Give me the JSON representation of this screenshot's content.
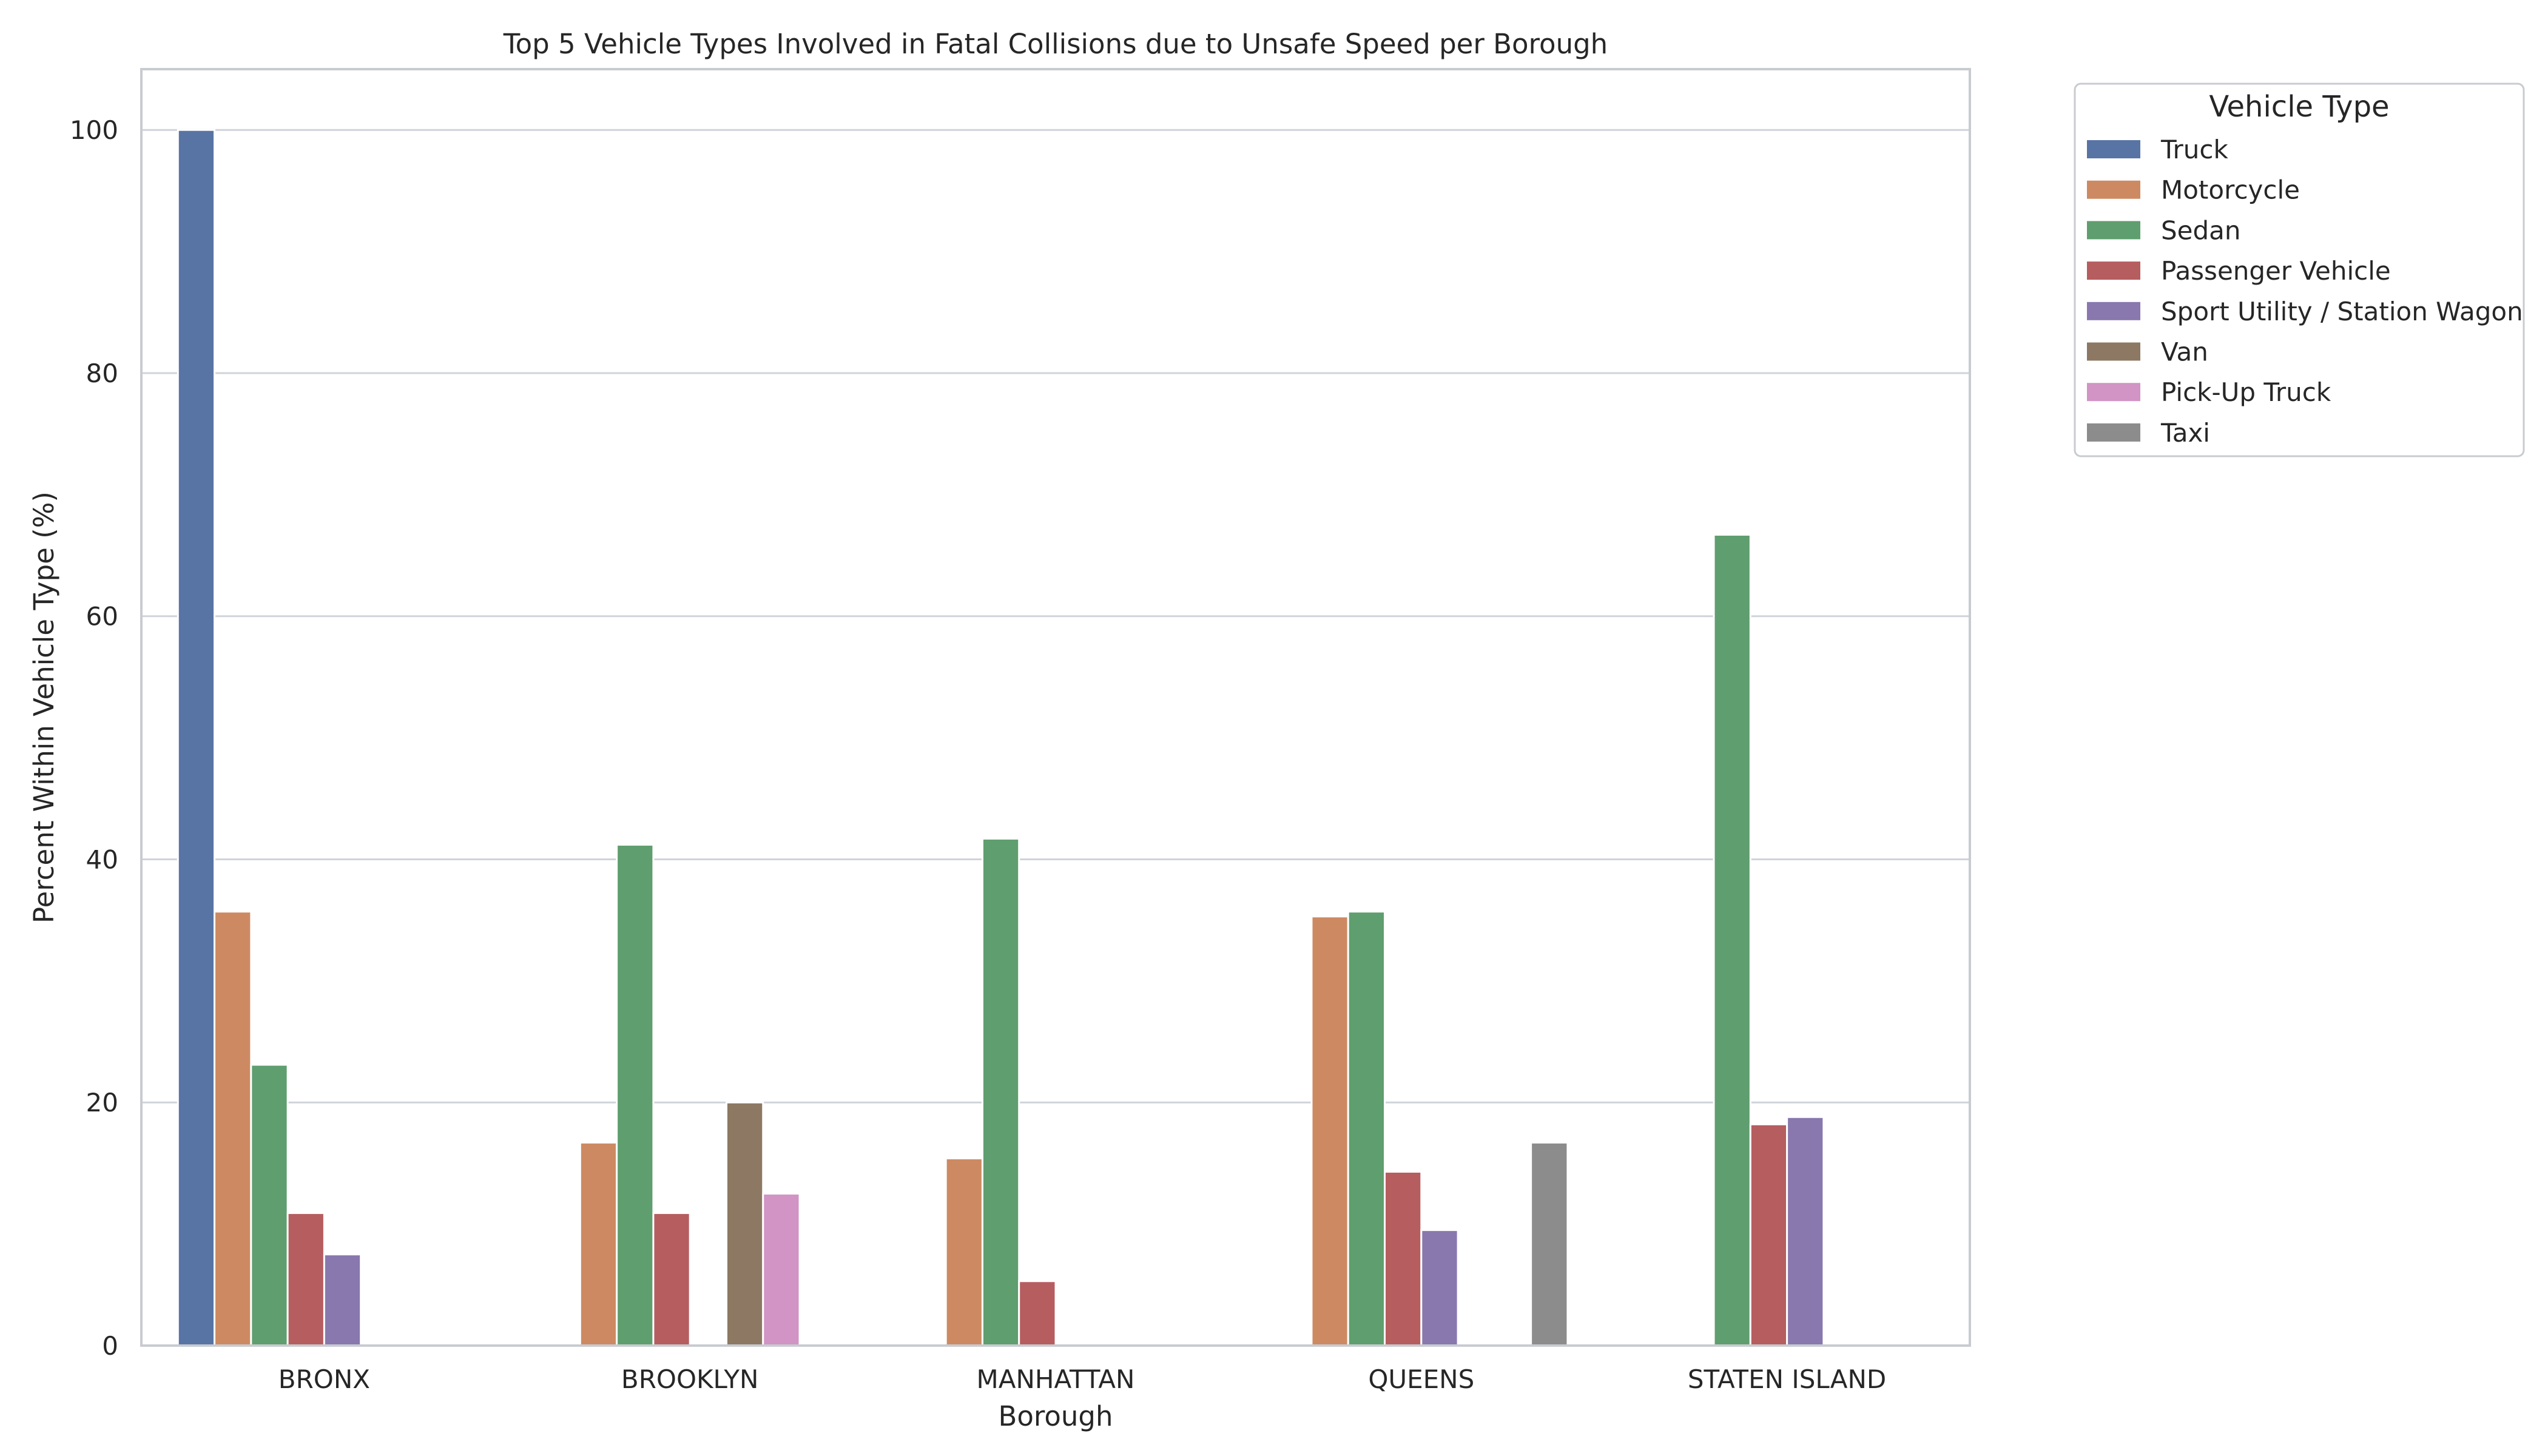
{
  "chart_data": {
    "type": "bar",
    "title": "Top 5 Vehicle Types Involved in Fatal Collisions due to Unsafe Speed per Borough",
    "xlabel": "Borough",
    "ylabel": "Percent Within Vehicle Type (%)",
    "ylim": [
      0,
      105
    ],
    "yticks": [
      0,
      20,
      40,
      60,
      80,
      100
    ],
    "grid": true,
    "legend_title": "Vehicle Type",
    "legend_position": "outside-top-right",
    "categories": [
      "BRONX",
      "BROOKLYN",
      "MANHATTAN",
      "QUEENS",
      "STATEN ISLAND"
    ],
    "series": [
      {
        "name": "Truck",
        "color": "#5874a5",
        "values": [
          100,
          null,
          null,
          null,
          null
        ]
      },
      {
        "name": "Motorcycle",
        "color": "#cd8a62",
        "values": [
          35.7,
          16.7,
          15.4,
          35.3,
          null
        ]
      },
      {
        "name": "Sedan",
        "color": "#5f9e6e",
        "values": [
          23.1,
          41.2,
          41.7,
          35.7,
          66.7
        ]
      },
      {
        "name": "Passenger Vehicle",
        "color": "#b65d60",
        "values": [
          10.9,
          10.9,
          5.3,
          14.3,
          18.2
        ]
      },
      {
        "name": "Sport Utility / Station Wagon",
        "color": "#8878ae",
        "values": [
          7.5,
          null,
          null,
          9.5,
          18.8
        ]
      },
      {
        "name": "Van",
        "color": "#8c7863",
        "values": [
          null,
          20.0,
          null,
          null,
          null
        ]
      },
      {
        "name": "Pick-Up Truck",
        "color": "#d194c4",
        "values": [
          null,
          12.5,
          null,
          null,
          null
        ]
      },
      {
        "name": "Taxi",
        "color": "#8c8c8c",
        "values": [
          null,
          null,
          null,
          16.7,
          null
        ]
      }
    ]
  }
}
